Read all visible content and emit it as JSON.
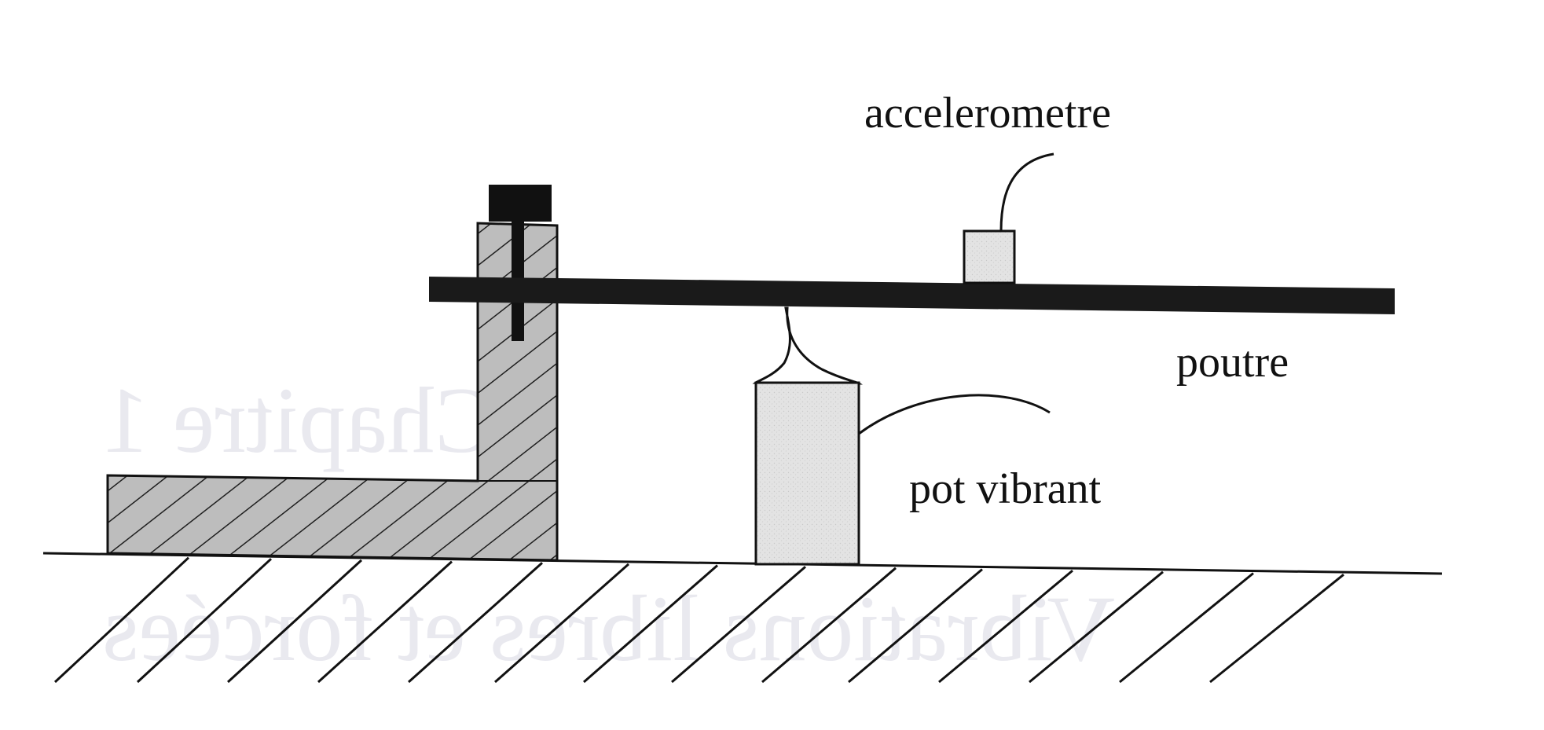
{
  "labels": {
    "accelerometre": "accelerometre",
    "poutre": "poutre",
    "pot_vibrant": "pot vibrant"
  },
  "background_ghost_text": {
    "line1": "Chapitre 1",
    "line2": "Vibrations libres et forcées"
  },
  "colors": {
    "ink": "#111111",
    "beam": "#1a1a1a",
    "support_fill": "#b9b9b9",
    "device_fill": "#e2e2e2",
    "ghost": "#e9e9ef"
  }
}
